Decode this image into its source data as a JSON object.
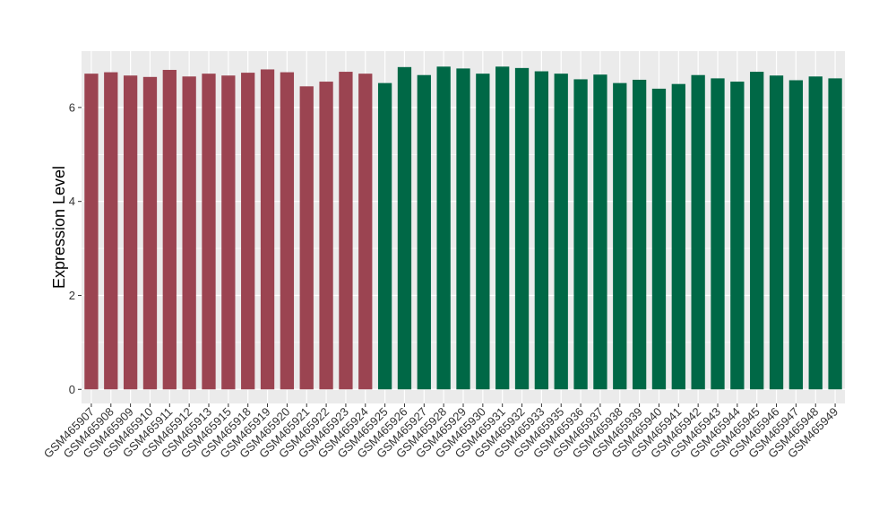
{
  "chart_data": {
    "type": "bar",
    "title": "",
    "xlabel": "",
    "ylabel": "Expression Level",
    "ylim": [
      -0.3,
      7.2
    ],
    "yticks": [
      0,
      2,
      4,
      6
    ],
    "grid": true,
    "legend": "none",
    "colors": {
      "group1": "#9b4451",
      "group2": "#006846",
      "panel": "#ebebeb",
      "grid": "#ffffff"
    },
    "categories": [
      "GSM465907",
      "GSM465908",
      "GSM465909",
      "GSM465910",
      "GSM465911",
      "GSM465912",
      "GSM465913",
      "GSM465915",
      "GSM465918",
      "GSM465919",
      "GSM465920",
      "GSM465921",
      "GSM465922",
      "GSM465923",
      "GSM465924",
      "GSM465925",
      "GSM465926",
      "GSM465927",
      "GSM465928",
      "GSM465929",
      "GSM465930",
      "GSM465931",
      "GSM465932",
      "GSM465933",
      "GSM465935",
      "GSM465936",
      "GSM465937",
      "GSM465938",
      "GSM465939",
      "GSM465940",
      "GSM465941",
      "GSM465942",
      "GSM465943",
      "GSM465944",
      "GSM465945",
      "GSM465946",
      "GSM465947",
      "GSM465948",
      "GSM465949"
    ],
    "values": [
      6.72,
      6.75,
      6.68,
      6.65,
      6.8,
      6.66,
      6.72,
      6.68,
      6.74,
      6.81,
      6.75,
      6.45,
      6.55,
      6.76,
      6.72,
      6.52,
      6.86,
      6.69,
      6.87,
      6.83,
      6.72,
      6.87,
      6.84,
      6.77,
      6.72,
      6.6,
      6.7,
      6.52,
      6.59,
      6.4,
      6.5,
      6.69,
      6.62,
      6.55,
      6.76,
      6.68,
      6.58,
      6.66,
      6.62
    ],
    "groups": [
      1,
      1,
      1,
      1,
      1,
      1,
      1,
      1,
      1,
      1,
      1,
      1,
      1,
      1,
      1,
      2,
      2,
      2,
      2,
      2,
      2,
      2,
      2,
      2,
      2,
      2,
      2,
      2,
      2,
      2,
      2,
      2,
      2,
      2,
      2,
      2,
      2,
      2,
      2
    ]
  }
}
